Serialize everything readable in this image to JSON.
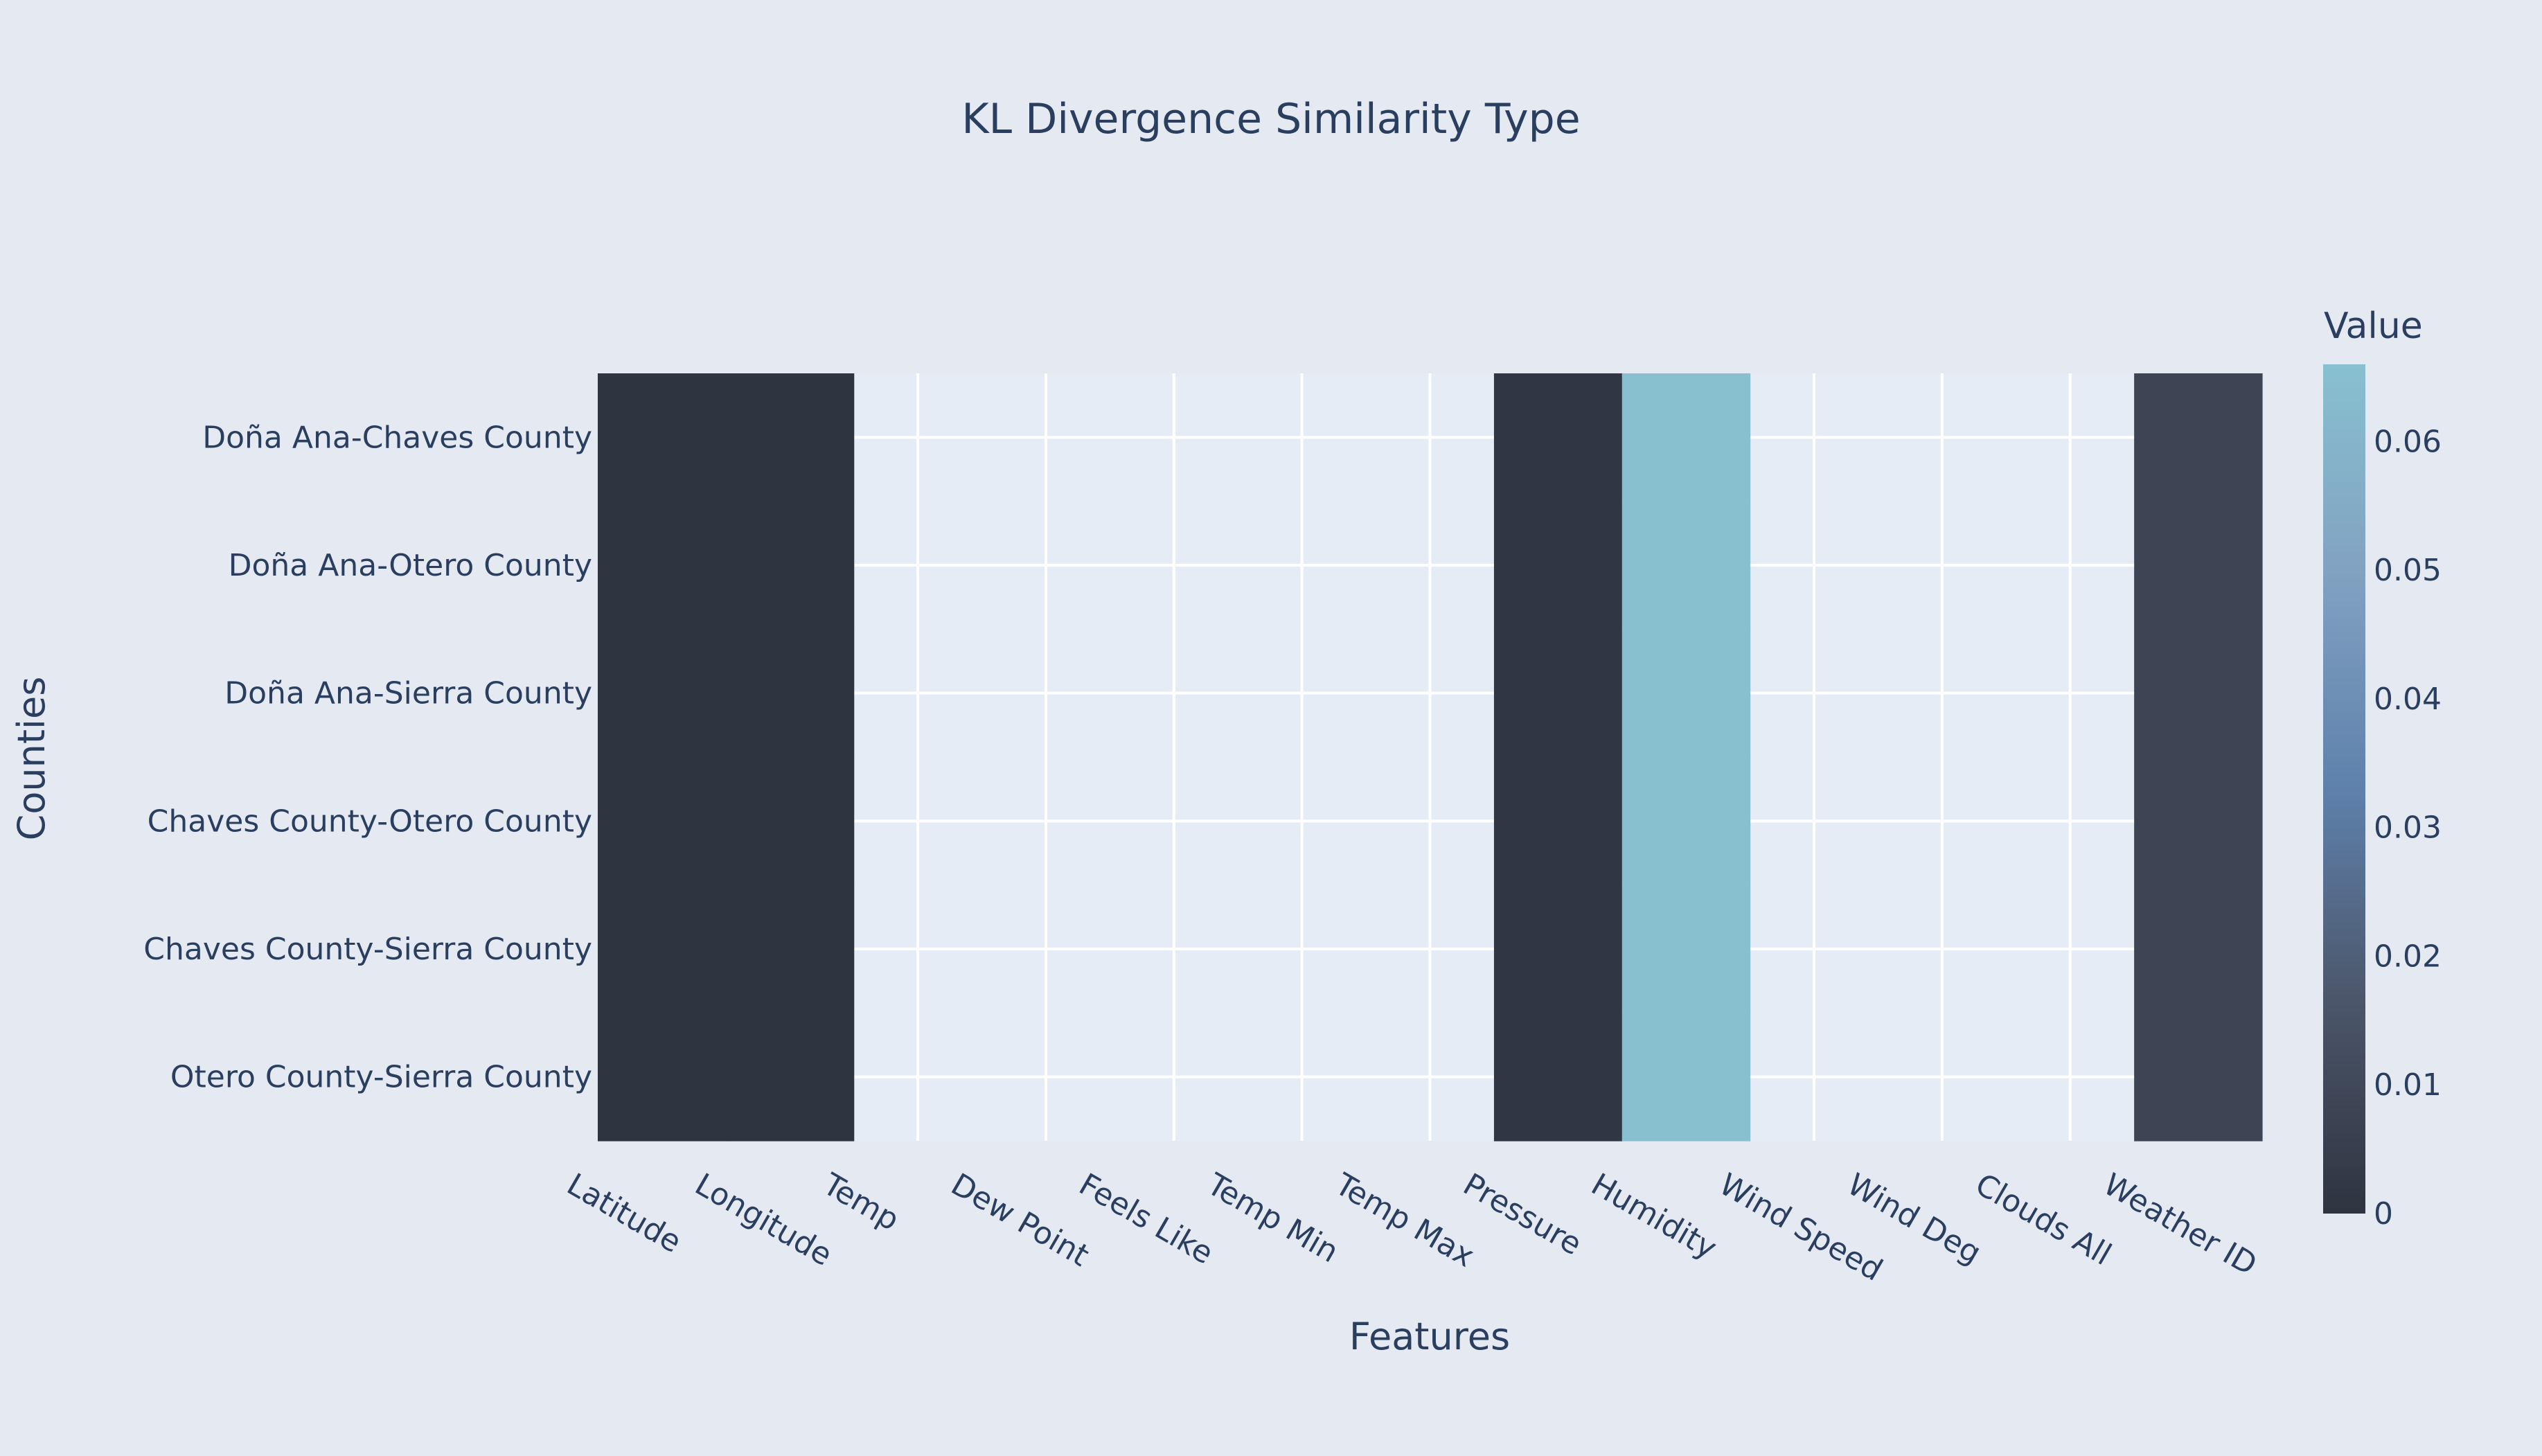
{
  "chart_data": {
    "type": "heatmap",
    "title": "KL Divergence Similarity Type",
    "xlabel": "Features",
    "ylabel": "Counties",
    "x": [
      "Latitude",
      "Longitude",
      "Temp",
      "Dew Point",
      "Feels Like",
      "Temp Min",
      "Temp Max",
      "Pressure",
      "Humidity",
      "Wind Speed",
      "Wind Deg",
      "Clouds All",
      "Weather ID"
    ],
    "y": [
      "Doña Ana-Chaves County",
      "Doña Ana-Otero County",
      "Doña Ana-Sierra County",
      "Chaves County-Otero County",
      "Chaves County-Sierra County",
      "Otero County-Sierra County"
    ],
    "z": [
      [
        0.0,
        0.0,
        null,
        null,
        null,
        null,
        null,
        0.001,
        0.066,
        null,
        null,
        null,
        0.008
      ],
      [
        0.0,
        0.0,
        null,
        null,
        null,
        null,
        null,
        0.001,
        0.066,
        null,
        null,
        null,
        0.008
      ],
      [
        0.0,
        0.0,
        null,
        null,
        null,
        null,
        null,
        0.001,
        0.066,
        null,
        null,
        null,
        0.008
      ],
      [
        0.0,
        0.0,
        null,
        null,
        null,
        null,
        null,
        0.001,
        0.066,
        null,
        null,
        null,
        0.008
      ],
      [
        0.0,
        0.0,
        null,
        null,
        null,
        null,
        null,
        0.001,
        0.066,
        null,
        null,
        null,
        0.008
      ],
      [
        0.0,
        0.0,
        null,
        null,
        null,
        null,
        null,
        0.001,
        0.066,
        null,
        null,
        null,
        0.008
      ]
    ],
    "zmin": 0,
    "zmax": 0.066,
    "colorscale": [
      "#2e3440",
      "#4c566a",
      "#5e81ac",
      "#81a1c1",
      "#88c0d0"
    ],
    "colorbar": {
      "title": "Value",
      "ticks": [
        0,
        0.01,
        0.02,
        0.03,
        0.04,
        0.05,
        0.06
      ],
      "tick_labels": [
        "0",
        "0.01",
        "0.02",
        "0.03",
        "0.04",
        "0.05",
        "0.06"
      ]
    },
    "grid": true,
    "plot_background": "#e5ecf6",
    "page_background": "#e5e9f2",
    "grid_color": "#ffffff"
  }
}
